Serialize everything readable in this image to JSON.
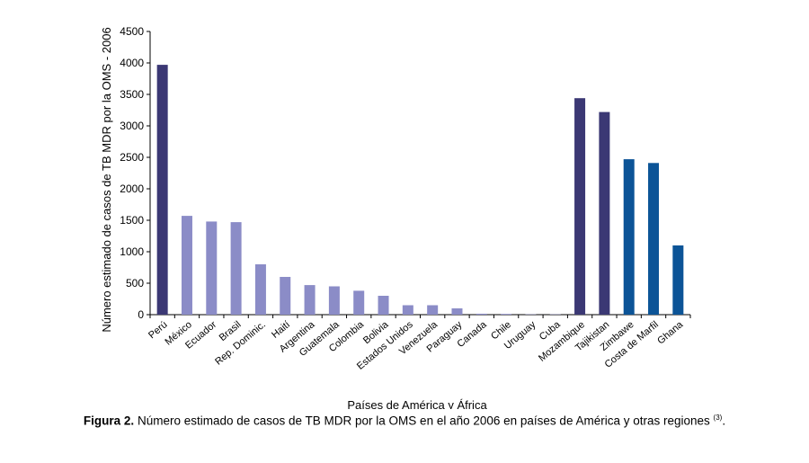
{
  "chart_data": {
    "type": "bar",
    "categories": [
      "Perú",
      "México",
      "Ecuador",
      "Brasil",
      "Rep. Dominic.",
      "Haití",
      "Argentina",
      "Guatemala",
      "Colombia",
      "Bolivia",
      "Estados Unidos",
      "Venezuela",
      "Paraguay",
      "Canada",
      "Chile",
      "Uruguay",
      "Cuba",
      "Mozambique",
      "Tajikistan",
      "Zimbawe",
      "Costa de Marfil",
      "Ghana"
    ],
    "values": [
      3970,
      1570,
      1480,
      1470,
      800,
      600,
      470,
      450,
      380,
      300,
      150,
      150,
      100,
      15,
      12,
      5,
      5,
      3440,
      3220,
      2470,
      2410,
      1100
    ],
    "colors": [
      "#3b3874",
      "#8b8cc7",
      "#8b8cc7",
      "#8b8cc7",
      "#8b8cc7",
      "#8b8cc7",
      "#8b8cc7",
      "#8b8cc7",
      "#8b8cc7",
      "#8b8cc7",
      "#8b8cc7",
      "#8b8cc7",
      "#8b8cc7",
      "#8b8cc7",
      "#8b8cc7",
      "#8b8cc7",
      "#8b8cc7",
      "#3b3874",
      "#3b3874",
      "#0c5497",
      "#0c5497",
      "#0c5497"
    ],
    "ylim": [
      0,
      4500
    ],
    "yticks": [
      "0",
      "500",
      "1000",
      "1500",
      "2000",
      "2500",
      "3000",
      "3500",
      "4000",
      "4500"
    ],
    "ylabel": "Número estimado de casos de TB MDR por la OMS - 2006",
    "xlabel": "Países de América y África",
    "grid": false,
    "legend": "none"
  },
  "caption": {
    "label": "Figura 2.",
    "text": " Número estimado de casos de TB MDR por la OMS en el año 2006 en países de América y otras regiones ",
    "ref": "(3)",
    "end": "."
  }
}
